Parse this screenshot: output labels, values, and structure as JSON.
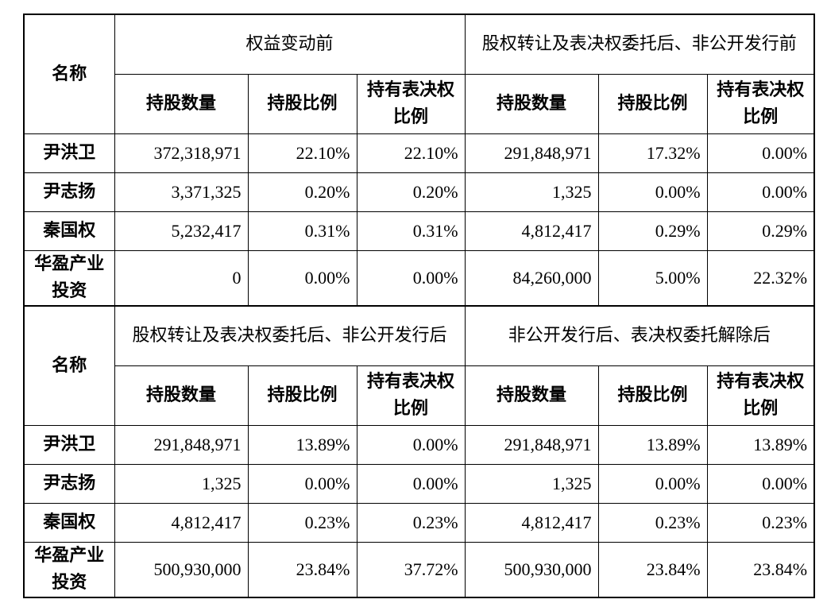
{
  "sections": [
    {
      "name_header": "名称",
      "groups": [
        "权益变动前",
        "股权转让及表决权委托后、非公开发行前"
      ],
      "sub_headers": [
        "持股数量",
        "持股比例",
        "持有表决权比例",
        "持股数量",
        "持股比例",
        "持有表决权比例"
      ],
      "rows": [
        {
          "name": "尹洪卫",
          "values": [
            "372,318,971",
            "22.10%",
            "22.10%",
            "291,848,971",
            "17.32%",
            "0.00%"
          ]
        },
        {
          "name": "尹志扬",
          "values": [
            "3,371,325",
            "0.20%",
            "0.20%",
            "1,325",
            "0.00%",
            "0.00%"
          ]
        },
        {
          "name": "秦国权",
          "values": [
            "5,232,417",
            "0.31%",
            "0.31%",
            "4,812,417",
            "0.29%",
            "0.29%"
          ]
        },
        {
          "name": "华盈产业投资",
          "values": [
            "0",
            "0.00%",
            "0.00%",
            "84,260,000",
            "5.00%",
            "22.32%"
          ]
        }
      ]
    },
    {
      "name_header": "名称",
      "groups": [
        "股权转让及表决权委托后、非公开发行后",
        "非公开发行后、表决权委托解除后"
      ],
      "sub_headers": [
        "持股数量",
        "持股比例",
        "持有表决权比例",
        "持股数量",
        "持股比例",
        "持有表决权比例"
      ],
      "rows": [
        {
          "name": "尹洪卫",
          "values": [
            "291,848,971",
            "13.89%",
            "0.00%",
            "291,848,971",
            "13.89%",
            "13.89%"
          ]
        },
        {
          "name": "尹志扬",
          "values": [
            "1,325",
            "0.00%",
            "0.00%",
            "1,325",
            "0.00%",
            "0.00%"
          ]
        },
        {
          "name": "秦国权",
          "values": [
            "4,812,417",
            "0.23%",
            "0.23%",
            "4,812,417",
            "0.23%",
            "0.23%"
          ]
        },
        {
          "name": "华盈产业投资",
          "values": [
            "500,930,000",
            "23.84%",
            "37.72%",
            "500,930,000",
            "23.84%",
            "23.84%"
          ]
        }
      ]
    }
  ]
}
